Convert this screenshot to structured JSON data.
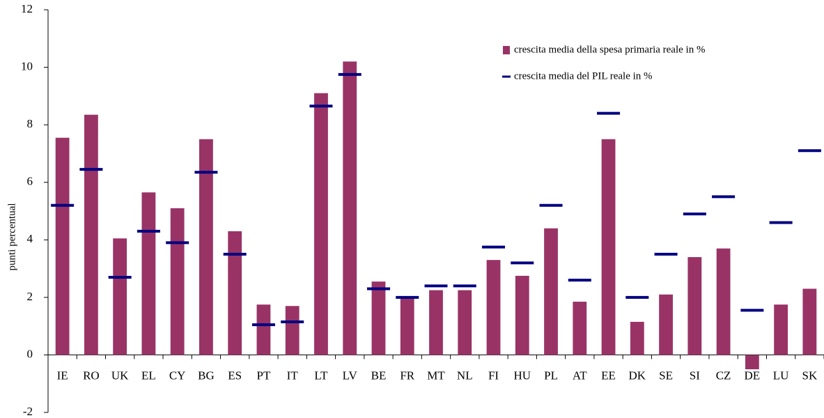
{
  "chart_data": {
    "type": "bar",
    "y_label": "punti percentual",
    "categories": [
      "IE",
      "RO",
      "UK",
      "EL",
      "CY",
      "BG",
      "ES",
      "PT",
      "IT",
      "LT",
      "LV",
      "BE",
      "FR",
      "MT",
      "NL",
      "FI",
      "HU",
      "PL",
      "AT",
      "EE",
      "DK",
      "SE",
      "SI",
      "CZ",
      "DE",
      "LU",
      "SK"
    ],
    "series": [
      {
        "name": "crescita media della spesa primaria reale in %",
        "color": "#993366",
        "mark": "bar",
        "values": [
          7.55,
          8.35,
          4.05,
          5.65,
          5.1,
          7.5,
          4.3,
          1.75,
          1.7,
          9.1,
          10.2,
          2.55,
          2.0,
          2.25,
          2.25,
          3.3,
          2.75,
          4.4,
          1.85,
          7.5,
          1.15,
          2.1,
          3.4,
          3.7,
          -0.5,
          1.75,
          2.3
        ]
      },
      {
        "name": "crescita media del PIL reale in %",
        "color": "#000080",
        "mark": "dash",
        "values": [
          5.2,
          6.45,
          2.7,
          4.3,
          3.9,
          6.35,
          3.5,
          1.05,
          1.15,
          8.65,
          9.75,
          2.3,
          2.0,
          2.4,
          2.4,
          3.75,
          3.2,
          5.2,
          2.6,
          8.4,
          2.0,
          3.5,
          4.9,
          5.5,
          1.55,
          4.6,
          7.1
        ]
      }
    ],
    "ylim": [
      -2,
      12
    ],
    "yticks": [
      -2,
      0,
      2,
      4,
      6,
      8,
      10,
      12
    ],
    "grid": false,
    "legend": "top-right"
  }
}
